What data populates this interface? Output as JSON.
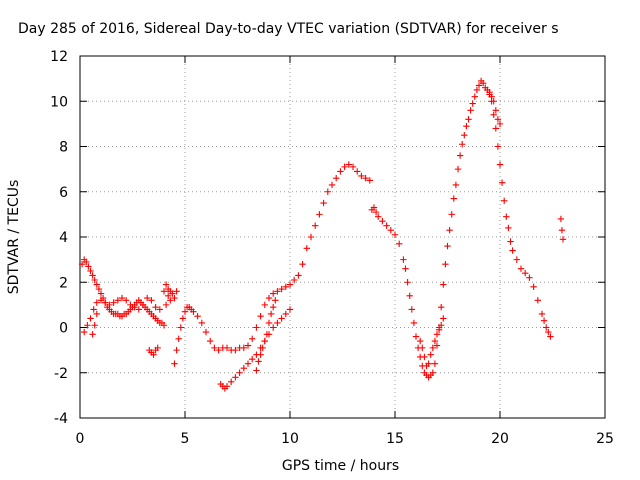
{
  "chart_data": {
    "type": "scatter",
    "title": "Day 285 of 2016, Sidereal Day-to-day VTEC variation (SDTVAR) for receiver s",
    "xlabel": "GPS time / hours",
    "ylabel": "SDTVAR / TECUs",
    "xlim": [
      0,
      25
    ],
    "ylim": [
      -4,
      12
    ],
    "xticks": [
      0,
      5,
      10,
      15,
      20,
      25
    ],
    "yticks": [
      -4,
      -2,
      0,
      2,
      4,
      6,
      8,
      10,
      12
    ],
    "grid": true,
    "marker": "plus",
    "color": "#ff0000",
    "series": [
      {
        "x": [
          0.1,
          0.2,
          0.3,
          0.4,
          0.5,
          0.6,
          0.7,
          0.8,
          0.9,
          1.0,
          1.1,
          1.2,
          1.3,
          1.4,
          1.5,
          1.6,
          1.7,
          1.8,
          1.9,
          2.0,
          2.1,
          2.2,
          2.3,
          2.4,
          2.5,
          2.6,
          2.7,
          2.8,
          2.9,
          3.0,
          3.1,
          3.2,
          3.3,
          3.4,
          3.5,
          3.6,
          3.7,
          3.8,
          3.9,
          4.0
        ],
        "y": [
          2.8,
          3.0,
          2.9,
          2.7,
          2.5,
          2.3,
          2.1,
          1.9,
          1.7,
          1.5,
          1.3,
          1.1,
          0.9,
          0.8,
          0.7,
          0.6,
          0.6,
          0.6,
          0.5,
          0.5,
          0.6,
          0.6,
          0.7,
          0.8,
          0.9,
          1.0,
          1.1,
          1.2,
          1.1,
          1.0,
          0.9,
          0.8,
          0.7,
          0.6,
          0.5,
          0.4,
          0.3,
          0.2,
          0.2,
          0.1
        ]
      },
      {
        "x": [
          0.2,
          0.35,
          0.5,
          0.65,
          0.8,
          1.0,
          1.2,
          1.4,
          1.6,
          1.8,
          2.0,
          2.2,
          2.4,
          2.6,
          2.8,
          3.0,
          3.2,
          3.4,
          3.6,
          3.8,
          4.0,
          4.1,
          4.2,
          4.3
        ],
        "y": [
          -0.2,
          0.1,
          0.4,
          0.8,
          1.1,
          1.2,
          1.1,
          1.0,
          1.1,
          1.2,
          1.3,
          1.2,
          1.0,
          0.9,
          0.8,
          1.0,
          1.3,
          1.2,
          0.9,
          0.8,
          1.6,
          1.9,
          1.7,
          1.2
        ]
      },
      {
        "x": [
          0.6,
          0.7,
          0.8
        ],
        "y": [
          -0.3,
          0.1,
          0.6
        ]
      },
      {
        "x": [
          3.3,
          3.4,
          3.5,
          3.6,
          3.7
        ],
        "y": [
          -1.0,
          -1.1,
          -1.2,
          -1.0,
          -0.9
        ]
      },
      {
        "x": [
          4.1,
          4.2,
          4.3,
          4.4,
          4.5,
          4.6
        ],
        "y": [
          1.0,
          1.4,
          1.6,
          1.5,
          1.3,
          1.6
        ]
      },
      {
        "x": [
          4.5,
          4.6,
          4.7,
          4.8,
          4.9,
          5.0,
          5.1,
          5.2,
          5.3,
          5.4,
          5.6,
          5.8,
          6.0,
          6.2,
          6.4,
          6.6,
          6.8,
          7.0,
          7.2,
          7.4,
          7.6,
          7.8,
          8.0,
          8.2,
          8.4,
          8.6,
          8.8,
          9.0,
          9.2,
          9.4,
          9.6,
          9.8,
          10.0,
          10.2,
          10.4,
          10.6,
          10.8,
          11.0,
          11.2,
          11.4,
          11.6,
          11.8,
          12.0,
          12.2,
          12.4,
          12.6,
          12.8,
          13.0,
          13.2,
          13.4,
          13.6,
          13.8
        ],
        "y": [
          -1.6,
          -1.0,
          -0.5,
          0.0,
          0.4,
          0.7,
          0.9,
          0.9,
          0.8,
          0.7,
          0.5,
          0.2,
          -0.2,
          -0.6,
          -0.9,
          -1.0,
          -0.9,
          -0.9,
          -1.0,
          -1.0,
          -0.9,
          -0.9,
          -0.8,
          -0.5,
          0.0,
          0.5,
          1.0,
          1.3,
          1.5,
          1.6,
          1.7,
          1.8,
          1.9,
          2.1,
          2.3,
          2.8,
          3.5,
          4.0,
          4.5,
          5.0,
          5.5,
          6.0,
          6.3,
          6.6,
          6.9,
          7.1,
          7.2,
          7.1,
          6.9,
          6.7,
          6.6,
          6.5
        ]
      },
      {
        "x": [
          6.7,
          6.8,
          6.9,
          7.0,
          7.2,
          7.4,
          7.6,
          7.8,
          8.0,
          8.2,
          8.4,
          8.6,
          8.8,
          9.0,
          9.2,
          9.4,
          9.6,
          9.8,
          10.0
        ],
        "y": [
          -2.5,
          -2.6,
          -2.7,
          -2.6,
          -2.4,
          -2.2,
          -2.0,
          -1.8,
          -1.6,
          -1.4,
          -1.2,
          -0.9,
          -0.6,
          -0.3,
          0.0,
          0.2,
          0.4,
          0.6,
          0.8
        ]
      },
      {
        "x": [
          8.4,
          8.5,
          8.6,
          8.7,
          8.8,
          8.9,
          9.0,
          9.1,
          9.2,
          9.3
        ],
        "y": [
          -1.9,
          -1.5,
          -1.2,
          -0.9,
          -0.6,
          -0.3,
          0.2,
          0.6,
          0.9,
          1.2
        ]
      },
      {
        "x": [
          13.9,
          14.0,
          14.1,
          14.2,
          14.4,
          14.6,
          14.8,
          15.0,
          15.2,
          15.4,
          15.5,
          15.6,
          15.7,
          15.8,
          15.9,
          16.0,
          16.1,
          16.2,
          16.3,
          16.4,
          16.5,
          16.6,
          16.7,
          16.8,
          16.9,
          17.0,
          17.1,
          17.2,
          17.3,
          17.4,
          17.5,
          17.6,
          17.7,
          17.8,
          17.9,
          18.0,
          18.1,
          18.2,
          18.3,
          18.4,
          18.5,
          18.6,
          18.7,
          18.8,
          18.9,
          19.0,
          19.1,
          19.2,
          19.3,
          19.4,
          19.5,
          19.6,
          19.7,
          19.8,
          19.9,
          20.0
        ],
        "y": [
          5.2,
          5.3,
          5.1,
          4.9,
          4.7,
          4.5,
          4.3,
          4.1,
          3.7,
          3.0,
          2.6,
          2.0,
          1.4,
          0.8,
          0.2,
          -0.4,
          -0.9,
          -1.3,
          -1.7,
          -2.0,
          -2.1,
          -2.2,
          -2.1,
          -2.0,
          -1.6,
          -0.8,
          0.0,
          0.9,
          1.9,
          2.8,
          3.6,
          4.3,
          5.0,
          5.7,
          6.3,
          7.0,
          7.6,
          8.1,
          8.5,
          8.9,
          9.2,
          9.6,
          9.9,
          10.2,
          10.5,
          10.7,
          10.9,
          10.8,
          10.6,
          10.5,
          10.3,
          10.2,
          10.0,
          9.6,
          9.2,
          9.0
        ]
      },
      {
        "x": [
          16.2,
          16.3,
          16.4,
          16.5,
          16.6,
          16.7,
          16.8,
          16.9,
          17.0,
          17.1,
          17.2,
          17.3
        ],
        "y": [
          -0.6,
          -0.9,
          -1.3,
          -1.7,
          -1.6,
          -1.2,
          -0.9,
          -0.6,
          -0.3,
          -0.1,
          0.1,
          0.4
        ]
      },
      {
        "x": [
          19.5,
          19.6,
          19.7,
          19.8,
          19.9,
          20.0,
          20.1,
          20.2,
          20.3,
          20.4,
          20.5,
          20.6,
          20.8,
          21.0,
          21.2,
          21.4,
          21.6,
          21.8,
          22.0,
          22.1,
          22.2,
          22.3,
          22.4
        ],
        "y": [
          10.4,
          10.0,
          9.4,
          8.8,
          8.0,
          7.2,
          6.4,
          5.6,
          4.9,
          4.4,
          3.8,
          3.4,
          3.0,
          2.6,
          2.4,
          2.2,
          1.8,
          1.2,
          0.6,
          0.3,
          0.0,
          -0.2,
          -0.4
        ]
      },
      {
        "x": [
          22.9,
          22.95,
          23.0
        ],
        "y": [
          4.8,
          4.3,
          3.9
        ]
      }
    ]
  }
}
